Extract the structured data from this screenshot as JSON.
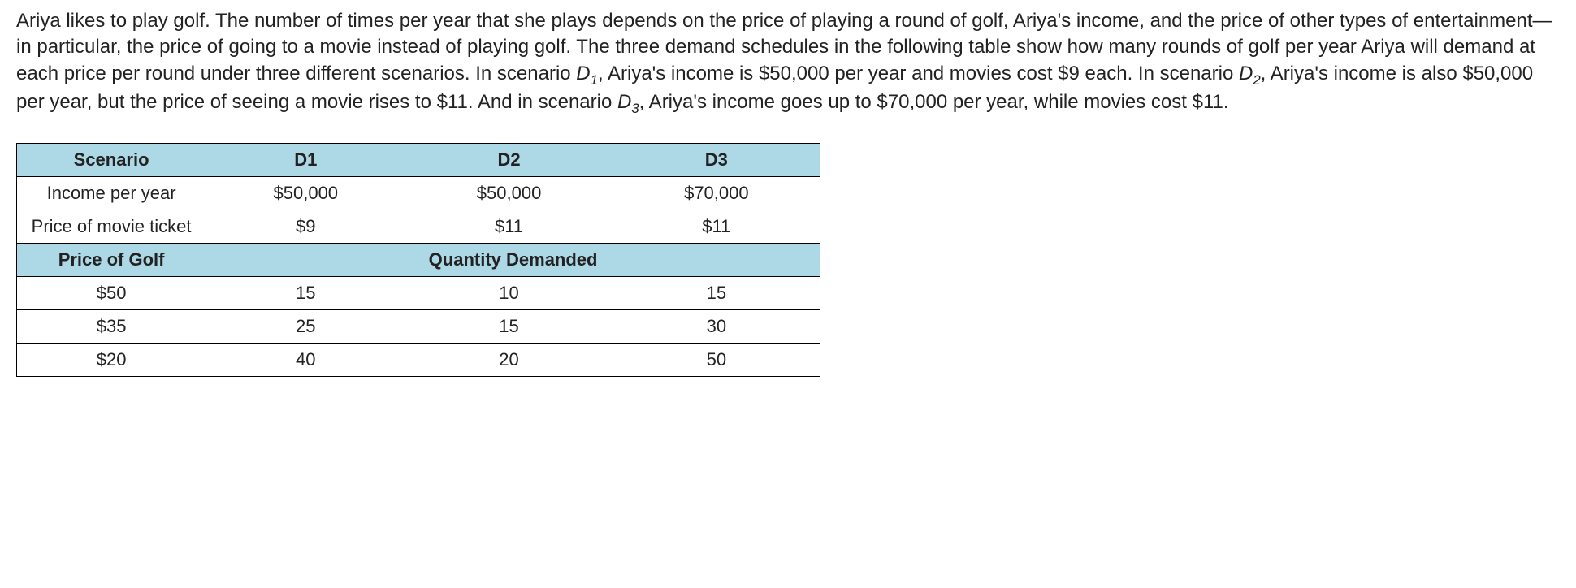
{
  "paragraph": {
    "p1": "Ariya likes to play golf. The number of times per year that she plays depends on the price of playing a round of golf, Ariya's income, and the price of other types of entertainment—in particular, the price of going to a movie instead of playing golf. The three demand schedules in the following table show how many rounds of golf per year Ariya will demand at each price per round under three different scenarios. In scenario ",
    "d1_label": "D",
    "d1_sub": "1",
    "p2": ", Ariya's income is $50,000 per year and movies cost $9 each. In scenario ",
    "d2_label": "D",
    "d2_sub": "2",
    "p3": ", Ariya's income is also $50,000 per year, but the price of seeing a movie rises to $11. And in scenario ",
    "d3_label": "D",
    "d3_sub": "3",
    "p4": ", Ariya's income goes up to $70,000 per year, while movies cost $11."
  },
  "table": {
    "headers": {
      "scenario": "Scenario",
      "d1": "D1",
      "d2": "D2",
      "d3": "D3"
    },
    "income": {
      "label": "Income per year",
      "d1": "$50,000",
      "d2": "$50,000",
      "d3": "$70,000"
    },
    "movie": {
      "label": "Price of movie ticket",
      "d1": "$9",
      "d2": "$11",
      "d3": "$11"
    },
    "subheaders": {
      "price_of_golf": "Price of Golf",
      "quantity_demanded": "Quantity Demanded"
    },
    "rows": [
      {
        "price": "$50",
        "d1": "15",
        "d2": "10",
        "d3": "15"
      },
      {
        "price": "$35",
        "d1": "25",
        "d2": "15",
        "d3": "30"
      },
      {
        "price": "$20",
        "d1": "40",
        "d2": "20",
        "d3": "50"
      }
    ]
  },
  "styles": {
    "header_bg": "#add8e6",
    "border_color": "#000000",
    "text_color": "#222222",
    "body_fontsize": 24,
    "table_fontsize": 22
  }
}
